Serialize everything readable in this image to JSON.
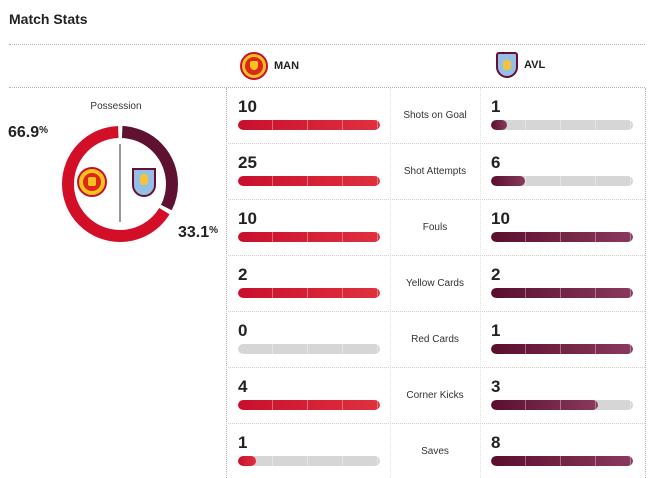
{
  "header": {
    "title": "Match Stats"
  },
  "teams": {
    "home": {
      "abbr": "MAN",
      "color": "#c8102e",
      "crest_icon": "manchester-united-crest-icon"
    },
    "away": {
      "abbr": "AVL",
      "color": "#670e36",
      "crest_icon": "aston-villa-crest-icon"
    }
  },
  "possession": {
    "label": "Possession",
    "home_value": "66.9",
    "away_value": "33.1",
    "unit": "%",
    "home_fraction": 0.669,
    "away_fraction": 0.331
  },
  "stats": [
    {
      "label": "Shots on Goal",
      "home": "10",
      "away": "1",
      "home_fraction": 1.0,
      "away_fraction": 0.1
    },
    {
      "label": "Shot Attempts",
      "home": "25",
      "away": "6",
      "home_fraction": 1.0,
      "away_fraction": 0.24
    },
    {
      "label": "Fouls",
      "home": "10",
      "away": "10",
      "home_fraction": 1.0,
      "away_fraction": 1.0
    },
    {
      "label": "Yellow Cards",
      "home": "2",
      "away": "2",
      "home_fraction": 1.0,
      "away_fraction": 1.0
    },
    {
      "label": "Red Cards",
      "home": "0",
      "away": "1",
      "home_fraction": 0.0,
      "away_fraction": 1.0
    },
    {
      "label": "Corner Kicks",
      "home": "4",
      "away": "3",
      "home_fraction": 1.0,
      "away_fraction": 0.75
    },
    {
      "label": "Saves",
      "home": "1",
      "away": "8",
      "home_fraction": 0.125,
      "away_fraction": 1.0
    }
  ]
}
